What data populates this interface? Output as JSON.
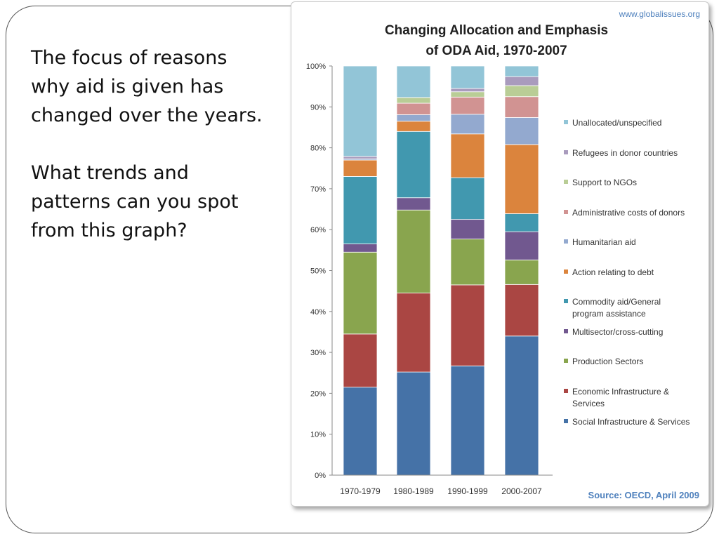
{
  "slide": {
    "paragraphs": [
      "The focus of reasons why aid is given has changed over the years.",
      "What trends and patterns can you spot from this graph?"
    ]
  },
  "chart_data": {
    "type": "bar",
    "stacked": true,
    "title_lines": [
      "Changing Allocation and Emphasis",
      "of ODA Aid, 1970-2007"
    ],
    "website": "www.globalissues.org",
    "source": "Source: OECD, April 2009",
    "categories": [
      "1970-1979",
      "1980-1989",
      "1990-1999",
      "2000-2007"
    ],
    "y_ticks": [
      "0%",
      "10%",
      "20%",
      "30%",
      "40%",
      "50%",
      "60%",
      "70%",
      "80%",
      "90%",
      "100%"
    ],
    "ylim": [
      0,
      100
    ],
    "grid": false,
    "legend_position": "right",
    "series": [
      {
        "name": "Social Infrastructure & Services",
        "legend_lines": [
          "Social Infrastructure & Services"
        ],
        "color": "#4572a7",
        "values": [
          21.5,
          25.2,
          26.7,
          34.0
        ]
      },
      {
        "name": "Economic Infrastructure & Services",
        "legend_lines": [
          "Economic Infrastructure &",
          "Services"
        ],
        "color": "#aa4643",
        "values": [
          13.0,
          19.3,
          19.8,
          12.6
        ]
      },
      {
        "name": "Production Sectors",
        "legend_lines": [
          "Production Sectors"
        ],
        "color": "#89a54e",
        "values": [
          20.0,
          20.3,
          11.2,
          6.0
        ]
      },
      {
        "name": "Multisector/cross-cutting",
        "legend_lines": [
          "Multisector/cross-cutting"
        ],
        "color": "#71588f",
        "values": [
          2.0,
          3.0,
          4.8,
          6.9
        ]
      },
      {
        "name": "Commodity aid/General program assistance",
        "legend_lines": [
          "Commodity aid/General",
          "program assistance"
        ],
        "color": "#4198af",
        "values": [
          16.5,
          16.2,
          10.2,
          4.4
        ]
      },
      {
        "name": "Action relating to debt",
        "legend_lines": [
          "Action relating to debt"
        ],
        "color": "#db843d",
        "values": [
          4.0,
          2.5,
          10.7,
          16.9
        ]
      },
      {
        "name": "Humanitarian aid",
        "legend_lines": [
          "Humanitarian aid"
        ],
        "color": "#93a9cf",
        "values": [
          0.3,
          1.6,
          4.8,
          6.6
        ]
      },
      {
        "name": "Administrative costs of donors",
        "legend_lines": [
          "Administrative costs of donors"
        ],
        "color": "#d19392",
        "values": [
          0.0,
          2.8,
          4.2,
          5.1
        ]
      },
      {
        "name": "Support to NGOs",
        "legend_lines": [
          "Support to NGOs"
        ],
        "color": "#b9cd96",
        "values": [
          0.0,
          1.4,
          1.3,
          2.7
        ]
      },
      {
        "name": "Refugees in donor countries",
        "legend_lines": [
          "Refugees in donor countries"
        ],
        "color": "#a99bbd",
        "values": [
          0.6,
          0.0,
          0.8,
          2.2
        ]
      },
      {
        "name": "Unallocated/unspecified",
        "legend_lines": [
          "Unallocated/unspecified"
        ],
        "color": "#92c5d7",
        "values": [
          22.1,
          7.7,
          5.5,
          2.6
        ]
      }
    ]
  }
}
